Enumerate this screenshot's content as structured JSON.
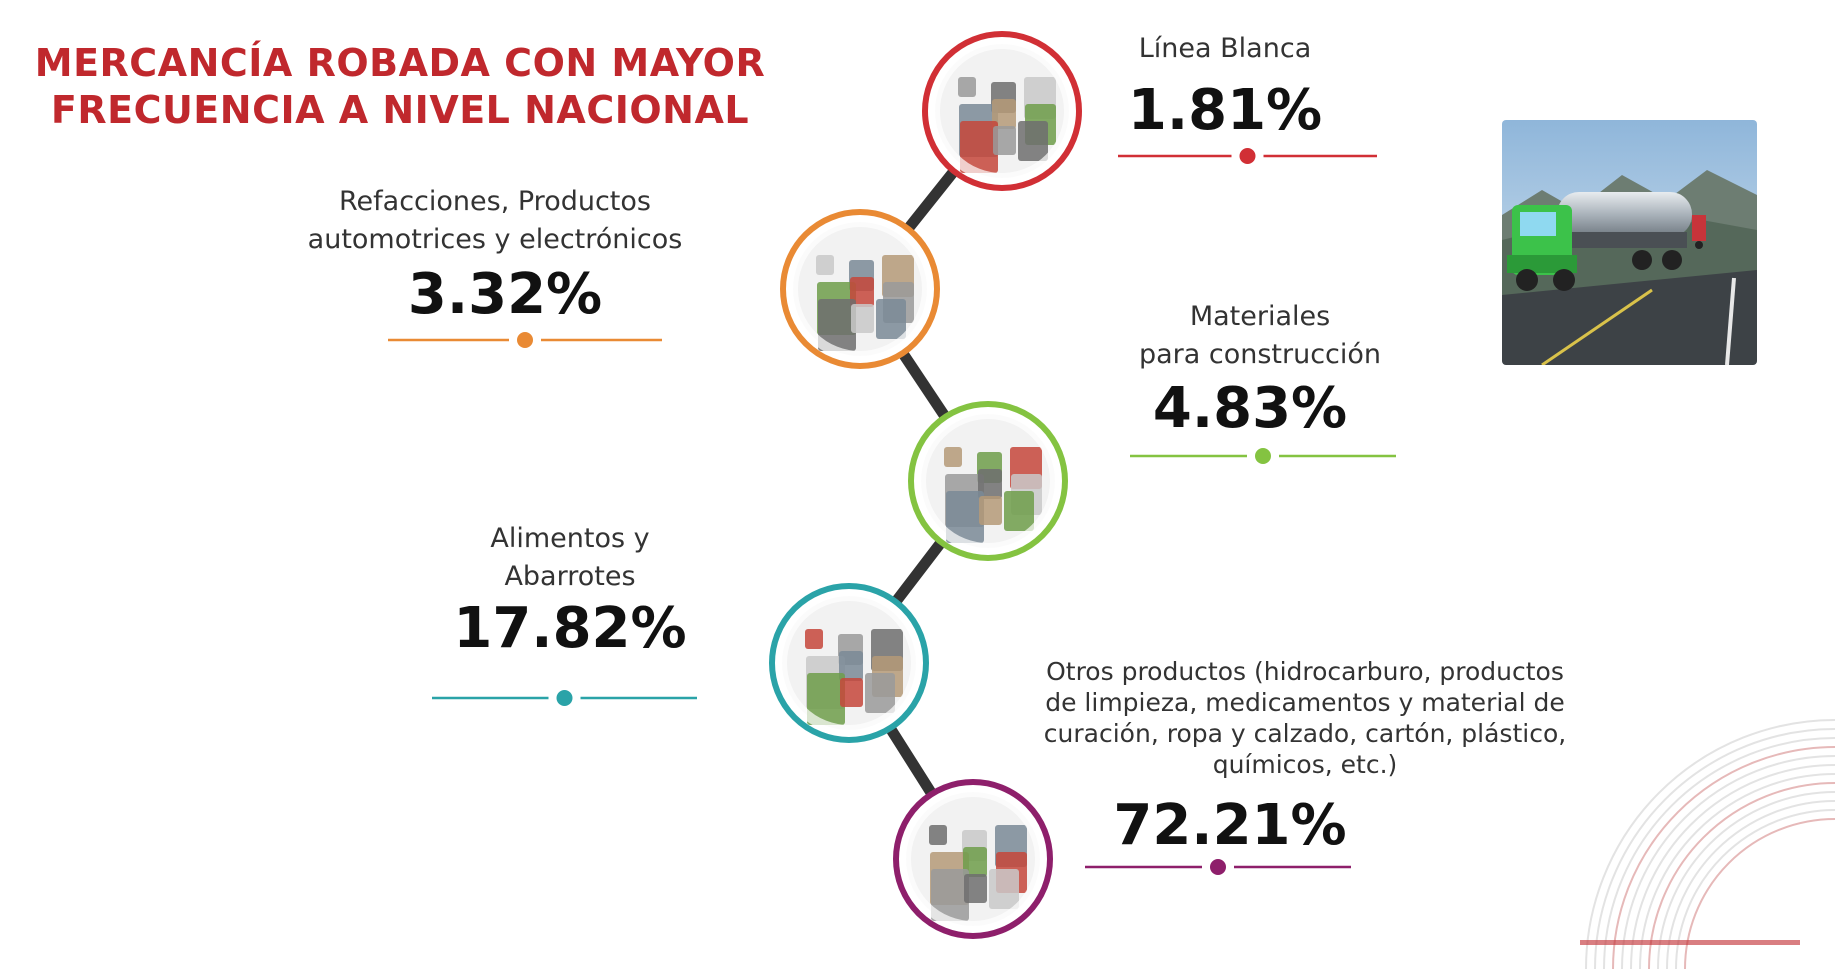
{
  "title_lines": [
    "MERCANCÍA ROBADA CON MAYOR",
    "FRECUENCIA A NIVEL NACIONAL"
  ],
  "colors": {
    "title": "#c0282d",
    "connector": "#333333"
  },
  "icons": {
    "truck_photo": "truck-photo-icon"
  },
  "chart_data": {
    "type": "table",
    "title": "MERCANCÍA ROBADA CON MAYOR FRECUENCIA A NIVEL NACIONAL",
    "items": [
      {
        "label": "Línea Blanca",
        "value": 1.81,
        "display": "1.81%",
        "color": "#d12f35",
        "icon": "appliances-icon"
      },
      {
        "label": "Refacciones, Productos\nautomotrices y electrónicos",
        "value": 3.32,
        "display": "3.32%",
        "color": "#e98a34",
        "icon": "auto-parts-icon"
      },
      {
        "label": "Materiales\npara construcción",
        "value": 4.83,
        "display": "4.83%",
        "color": "#84c341",
        "icon": "construction-materials-icon"
      },
      {
        "label": "Alimentos y\nAbarrotes",
        "value": 17.82,
        "display": "17.82%",
        "color": "#2aa3a8",
        "icon": "groceries-icon"
      },
      {
        "label": "Otros productos (hidrocarburo, productos\nde limpieza, medicamentos y material de\ncuración, ropa y calzado, cartón, plástico,\nquímicos, etc.)",
        "value": 72.21,
        "display": "72.21%",
        "color": "#8e1f6b",
        "icon": "other-products-icon"
      }
    ]
  }
}
